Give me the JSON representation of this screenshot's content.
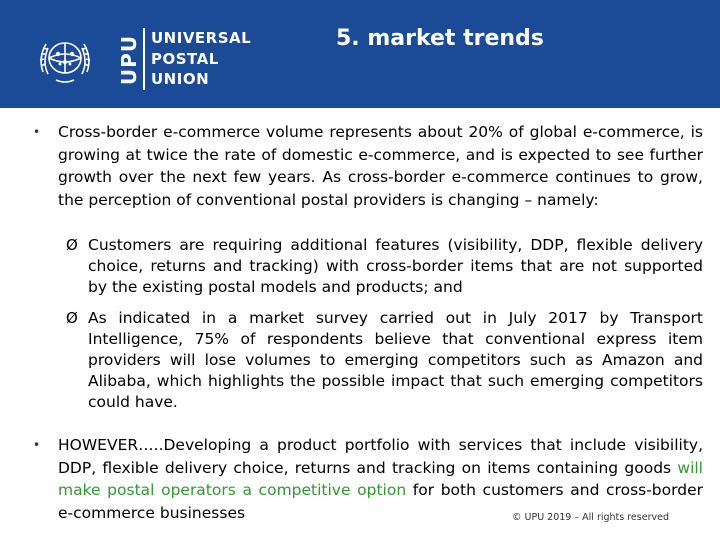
{
  "header": {
    "logo_abbr": "UPU",
    "logo_line1": "UNIVERSAL",
    "logo_line2": "POSTAL",
    "logo_line3": "UNION",
    "title": "5.  market trends",
    "background": "#1b4a96"
  },
  "body": {
    "bullet_glyph": "•",
    "arrow_glyph": "Ø",
    "para1": "Cross-border e-commerce volume represents about 20% of global e-commerce, is growing at twice the rate of domestic e-commerce, and is expected to see further growth over the next few years. As cross-border e-commerce continues to grow, the perception of conventional postal providers is changing – namely:",
    "sub1": "Customers are requiring additional features (visibility,  DDP, flexible delivery choice, returns and tracking) with cross-border items that are not supported by the existing postal models and products; and",
    "sub2": "As indicated in a market survey carried out in July 2017 by Transport Intelligence, 75% of respondents believe that conventional express item providers will lose volumes to emerging competitors such as Amazon and Alibaba, which highlights the possible impact that such emerging competitors could have.",
    "para2_start": "HOWEVER…..Developing a product portfolio with services that include visibility,  DDP, flexible delivery choice, returns and tracking on items containing goods ",
    "para2_highlight": "will make postal operators a competitive option",
    "para2_end": " for both customers and cross-border e-commerce businesses",
    "highlight_color": "#2f9a2f"
  },
  "footer": {
    "copyright": "© UPU 2019 – All rights reserved"
  }
}
